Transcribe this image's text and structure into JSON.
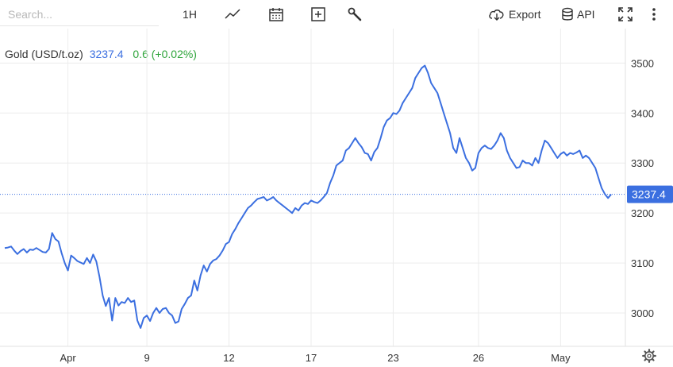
{
  "toolbar": {
    "search_placeholder": "Search...",
    "interval": "1H",
    "export_label": "Export",
    "api_label": "API",
    "icons": [
      "line-chart-icon",
      "calendar-icon",
      "add-indicator-icon",
      "wrench-icon",
      "cloud-download-icon",
      "database-icon",
      "fullscreen-icon",
      "more-vertical-icon",
      "settings-gear-icon"
    ]
  },
  "header": {
    "name": "Gold (USD/t.oz)",
    "price": "3237.4",
    "change": "0.6 (+0.02%)"
  },
  "colors": {
    "line": "#3b6fe0",
    "price_tag": "#3b6fe0",
    "change_positive": "#2ea43a",
    "grid": "#ececec"
  },
  "chart_data": {
    "type": "line",
    "series": [
      {
        "name": "Gold (USD/t.oz)",
        "points": [
          [
            0,
            3130
          ],
          [
            1,
            3131
          ],
          [
            2,
            3133
          ],
          [
            3,
            3125
          ],
          [
            4,
            3118
          ],
          [
            5,
            3124
          ],
          [
            6,
            3128
          ],
          [
            7,
            3121
          ],
          [
            8,
            3127
          ],
          [
            9,
            3126
          ],
          [
            10,
            3130
          ],
          [
            11,
            3126
          ],
          [
            12,
            3122
          ],
          [
            13,
            3121
          ],
          [
            14,
            3128
          ],
          [
            15,
            3160
          ],
          [
            16,
            3148
          ],
          [
            17,
            3143
          ],
          [
            18,
            3120
          ],
          [
            19,
            3100
          ],
          [
            20,
            3085
          ],
          [
            21,
            3115
          ],
          [
            22,
            3110
          ],
          [
            23,
            3104
          ],
          [
            24,
            3101
          ],
          [
            25,
            3098
          ],
          [
            26,
            3110
          ],
          [
            27,
            3100
          ],
          [
            28,
            3117
          ],
          [
            29,
            3103
          ],
          [
            30,
            3072
          ],
          [
            31,
            3035
          ],
          [
            32,
            3014
          ],
          [
            33,
            3030
          ],
          [
            34,
            2985
          ],
          [
            35,
            3030
          ],
          [
            36,
            3015
          ],
          [
            37,
            3022
          ],
          [
            38,
            3020
          ],
          [
            39,
            3030
          ],
          [
            40,
            3022
          ],
          [
            41,
            3025
          ],
          [
            42,
            2985
          ],
          [
            43,
            2970
          ],
          [
            44,
            2990
          ],
          [
            45,
            2995
          ],
          [
            46,
            2984
          ],
          [
            47,
            3000
          ],
          [
            48,
            3010
          ],
          [
            49,
            3000
          ],
          [
            50,
            3008
          ],
          [
            51,
            3010
          ],
          [
            52,
            3000
          ],
          [
            53,
            2995
          ],
          [
            54,
            2980
          ],
          [
            55,
            2983
          ],
          [
            56,
            3008
          ],
          [
            57,
            3018
          ],
          [
            58,
            3030
          ],
          [
            59,
            3035
          ],
          [
            60,
            3065
          ],
          [
            61,
            3045
          ],
          [
            62,
            3075
          ],
          [
            63,
            3095
          ],
          [
            64,
            3083
          ],
          [
            65,
            3098
          ],
          [
            66,
            3105
          ],
          [
            67,
            3108
          ],
          [
            68,
            3115
          ],
          [
            69,
            3125
          ],
          [
            70,
            3138
          ],
          [
            71,
            3142
          ],
          [
            72,
            3158
          ],
          [
            73,
            3168
          ],
          [
            74,
            3180
          ],
          [
            75,
            3190
          ],
          [
            76,
            3200
          ],
          [
            77,
            3210
          ],
          [
            78,
            3215
          ],
          [
            79,
            3222
          ],
          [
            80,
            3228
          ],
          [
            81,
            3230
          ],
          [
            82,
            3232
          ],
          [
            83,
            3225
          ],
          [
            84,
            3228
          ],
          [
            85,
            3232
          ],
          [
            86,
            3225
          ],
          [
            87,
            3220
          ],
          [
            88,
            3215
          ],
          [
            89,
            3210
          ],
          [
            90,
            3205
          ],
          [
            91,
            3200
          ],
          [
            92,
            3210
          ],
          [
            93,
            3205
          ],
          [
            94,
            3215
          ],
          [
            95,
            3220
          ],
          [
            96,
            3218
          ],
          [
            97,
            3225
          ],
          [
            98,
            3222
          ],
          [
            99,
            3220
          ],
          [
            100,
            3225
          ],
          [
            101,
            3232
          ],
          [
            102,
            3240
          ],
          [
            103,
            3260
          ],
          [
            104,
            3275
          ],
          [
            105,
            3295
          ],
          [
            106,
            3300
          ],
          [
            107,
            3305
          ],
          [
            108,
            3325
          ],
          [
            109,
            3330
          ],
          [
            110,
            3340
          ],
          [
            111,
            3350
          ],
          [
            112,
            3340
          ],
          [
            113,
            3332
          ],
          [
            114,
            3320
          ],
          [
            115,
            3318
          ],
          [
            116,
            3305
          ],
          [
            117,
            3322
          ],
          [
            118,
            3330
          ],
          [
            119,
            3350
          ],
          [
            120,
            3372
          ],
          [
            121,
            3385
          ],
          [
            122,
            3390
          ],
          [
            123,
            3400
          ],
          [
            124,
            3398
          ],
          [
            125,
            3405
          ],
          [
            126,
            3420
          ],
          [
            127,
            3430
          ],
          [
            128,
            3440
          ],
          [
            129,
            3450
          ],
          [
            130,
            3470
          ],
          [
            131,
            3480
          ],
          [
            132,
            3490
          ],
          [
            133,
            3495
          ],
          [
            134,
            3480
          ],
          [
            135,
            3460
          ],
          [
            136,
            3450
          ],
          [
            137,
            3440
          ],
          [
            138,
            3420
          ],
          [
            139,
            3400
          ],
          [
            140,
            3380
          ],
          [
            141,
            3360
          ],
          [
            142,
            3330
          ],
          [
            143,
            3320
          ],
          [
            144,
            3350
          ],
          [
            145,
            3330
          ],
          [
            146,
            3310
          ],
          [
            147,
            3300
          ],
          [
            148,
            3285
          ],
          [
            149,
            3290
          ],
          [
            150,
            3320
          ],
          [
            151,
            3330
          ],
          [
            152,
            3335
          ],
          [
            153,
            3330
          ],
          [
            154,
            3328
          ],
          [
            155,
            3335
          ],
          [
            156,
            3345
          ],
          [
            157,
            3360
          ],
          [
            158,
            3350
          ],
          [
            159,
            3325
          ],
          [
            160,
            3310
          ],
          [
            161,
            3300
          ],
          [
            162,
            3290
          ],
          [
            163,
            3292
          ],
          [
            164,
            3305
          ],
          [
            165,
            3300
          ],
          [
            166,
            3300
          ],
          [
            167,
            3295
          ],
          [
            168,
            3310
          ],
          [
            169,
            3300
          ],
          [
            170,
            3325
          ],
          [
            171,
            3345
          ],
          [
            172,
            3340
          ],
          [
            173,
            3330
          ],
          [
            174,
            3320
          ],
          [
            175,
            3310
          ],
          [
            176,
            3318
          ],
          [
            177,
            3322
          ],
          [
            178,
            3315
          ],
          [
            179,
            3320
          ],
          [
            180,
            3318
          ],
          [
            181,
            3321
          ],
          [
            182,
            3325
          ],
          [
            183,
            3310
          ],
          [
            184,
            3315
          ],
          [
            185,
            3310
          ],
          [
            186,
            3300
          ],
          [
            187,
            3290
          ],
          [
            188,
            3270
          ],
          [
            189,
            3250
          ],
          [
            190,
            3238
          ],
          [
            191,
            3230
          ],
          [
            192,
            3237.4
          ]
        ]
      }
    ],
    "x_ticks": [
      {
        "x": 20,
        "label": "Apr"
      },
      {
        "x": 45,
        "label": "9"
      },
      {
        "x": 71,
        "label": "12"
      },
      {
        "x": 97,
        "label": "17"
      },
      {
        "x": 123,
        "label": "23"
      },
      {
        "x": 150,
        "label": "26"
      },
      {
        "x": 176,
        "label": "May"
      }
    ],
    "y_ticks": [
      3000,
      3100,
      3200,
      3300,
      3400,
      3500
    ],
    "xlim": [
      0,
      195
    ],
    "ylim": [
      2933.3,
      3568.9
    ],
    "last_price": 3237.4,
    "last_price_label": "3237.4",
    "grid": true,
    "axis_side": "right"
  }
}
